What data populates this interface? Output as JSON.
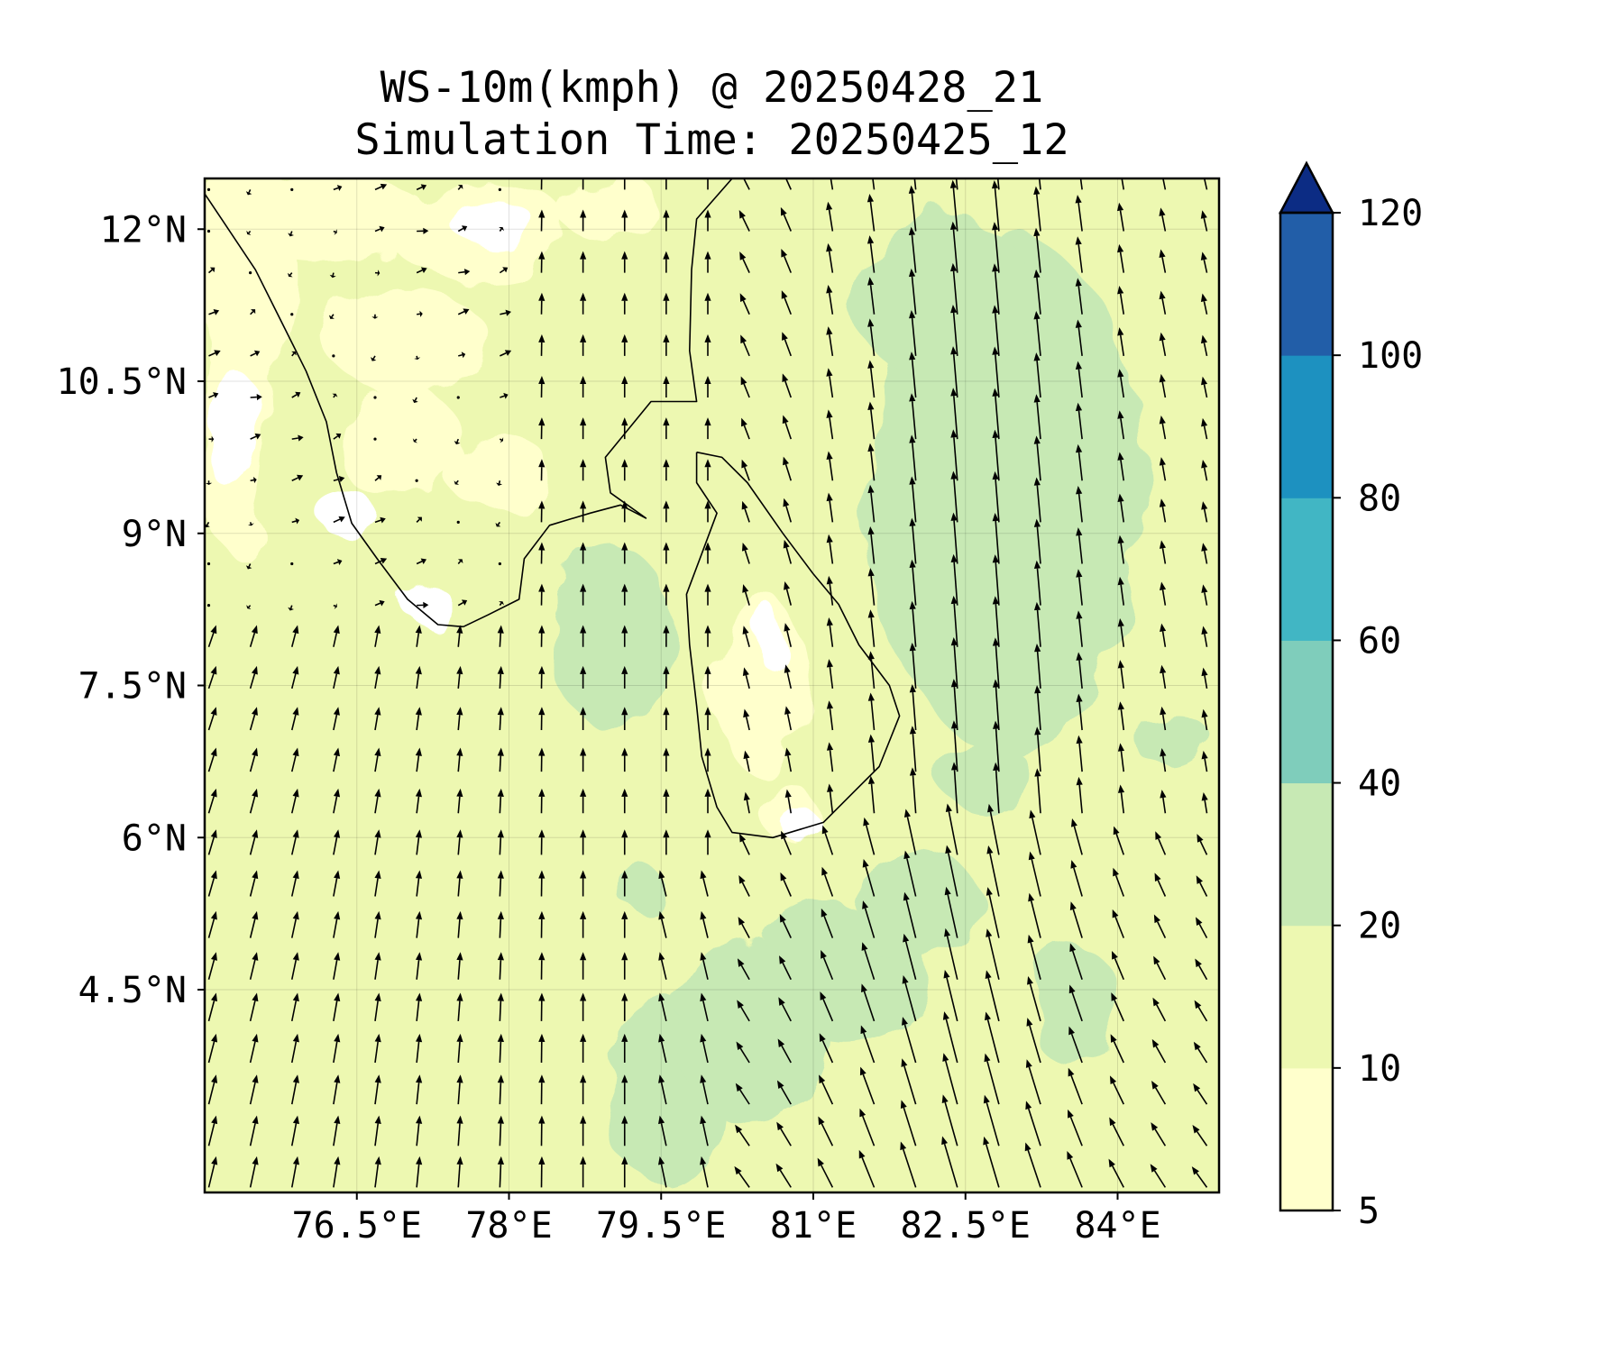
{
  "figure": {
    "title_line_1": "WS-10m(kmph) @ 20250428_21",
    "title_line_2": "Simulation Time: 20250425_12"
  },
  "map": {
    "lon_range": [
      75.0,
      85.0
    ],
    "lat_range": [
      2.5,
      12.5
    ],
    "lon_ticks": [
      {
        "value": 76.5,
        "label": "76.5°E"
      },
      {
        "value": 78.0,
        "label": "78°E"
      },
      {
        "value": 79.5,
        "label": "79.5°E"
      },
      {
        "value": 81.0,
        "label": "81°E"
      },
      {
        "value": 82.5,
        "label": "82.5°E"
      },
      {
        "value": 84.0,
        "label": "84°E"
      }
    ],
    "lat_ticks": [
      {
        "value": 12.0,
        "label": "12°N"
      },
      {
        "value": 10.5,
        "label": "10.5°N"
      },
      {
        "value": 9.0,
        "label": "9°N"
      },
      {
        "value": 7.5,
        "label": "7.5°N"
      },
      {
        "value": 6.0,
        "label": "6°N"
      },
      {
        "value": 4.5,
        "label": "4.5°N"
      }
    ],
    "gridlines": true,
    "land_outlines": {
      "india_southwest": [
        [
          75.0,
          12.35
        ],
        [
          75.2,
          12.05
        ],
        [
          75.5,
          11.6
        ],
        [
          75.75,
          11.1
        ],
        [
          76.0,
          10.6
        ],
        [
          76.2,
          10.1
        ],
        [
          76.3,
          9.6
        ],
        [
          76.45,
          9.1
        ],
        [
          76.7,
          8.75
        ],
        [
          77.0,
          8.35
        ],
        [
          77.3,
          8.1
        ],
        [
          77.55,
          8.08
        ]
      ],
      "india_southeast": [
        [
          77.55,
          8.08
        ],
        [
          77.8,
          8.2
        ],
        [
          78.1,
          8.35
        ],
        [
          78.15,
          8.75
        ],
        [
          78.4,
          9.08
        ],
        [
          78.8,
          9.2
        ],
        [
          79.1,
          9.28
        ],
        [
          79.35,
          9.15
        ],
        [
          79.0,
          9.4
        ],
        [
          78.95,
          9.75
        ],
        [
          79.4,
          10.3
        ],
        [
          79.85,
          10.3
        ],
        [
          79.78,
          10.8
        ],
        [
          79.8,
          11.6
        ],
        [
          79.85,
          12.1
        ],
        [
          80.2,
          12.5
        ],
        [
          80.25,
          12.5
        ]
      ],
      "sri_lanka": [
        [
          79.85,
          9.8
        ],
        [
          80.1,
          9.75
        ],
        [
          80.35,
          9.5
        ],
        [
          80.7,
          9.0
        ],
        [
          81.0,
          8.6
        ],
        [
          81.25,
          8.3
        ],
        [
          81.45,
          7.9
        ],
        [
          81.75,
          7.5
        ],
        [
          81.85,
          7.2
        ],
        [
          81.65,
          6.7
        ],
        [
          81.4,
          6.45
        ],
        [
          81.1,
          6.15
        ],
        [
          80.6,
          6.0
        ],
        [
          80.2,
          6.05
        ],
        [
          80.05,
          6.3
        ],
        [
          79.9,
          6.8
        ],
        [
          79.85,
          7.3
        ],
        [
          79.78,
          7.9
        ],
        [
          79.75,
          8.4
        ],
        [
          79.9,
          8.8
        ],
        [
          80.05,
          9.2
        ],
        [
          79.85,
          9.5
        ],
        [
          79.85,
          9.8
        ]
      ]
    },
    "quiver_description": "10 m wind vectors; weak variable flow over the Arabian Sea and Gulf of Mannar, southerly to south-southwesterly flow over the Bay of Bengal with strongest winds east of Sri Lanka"
  },
  "colorbar": {
    "levels": [
      5,
      10,
      20,
      40,
      60,
      80,
      100,
      120
    ],
    "labels": [
      "5",
      "10",
      "20",
      "40",
      "60",
      "80",
      "100",
      "120"
    ],
    "colors": [
      "#ffffcc",
      "#edf8b1",
      "#c7e9b4",
      "#7fcdbb",
      "#41b6c4",
      "#1d91c0",
      "#225ea8",
      "#0c2c84"
    ],
    "extend": "max"
  }
}
